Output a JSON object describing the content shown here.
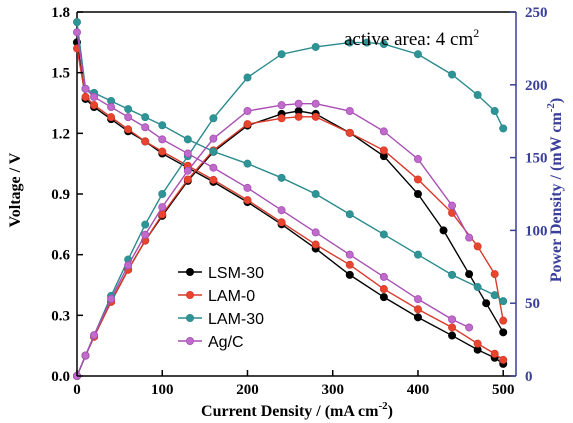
{
  "chart_data": {
    "type": "line",
    "x_axis": {
      "label": "Current Density / (mA cm",
      "label_sup": "-2",
      "label_end": ")",
      "range": [
        0,
        515
      ],
      "ticks": [
        0,
        100,
        200,
        300,
        400,
        500
      ]
    },
    "y_left": {
      "label": "Voltage / V",
      "range": [
        0,
        1.8
      ],
      "ticks": [
        "0.0",
        "0.3",
        "0.6",
        "0.9",
        "1.2",
        "1.5",
        "1.8"
      ]
    },
    "y_right": {
      "label": "Power Density / (mW cm",
      "label_sup": "-2",
      "label_end": ")",
      "range": [
        0,
        250
      ],
      "ticks": [
        0,
        50,
        100,
        150,
        200,
        250
      ],
      "color": "#3a3f9a"
    },
    "annotation": {
      "text": "active area: 4 cm",
      "sup": "2"
    },
    "legend": {
      "position": "bottom-left"
    },
    "series": [
      {
        "name": "LSM-30",
        "color": "#000000",
        "fill": "#000000",
        "voltage": {
          "x": [
            0,
            10,
            20,
            40,
            60,
            80,
            100,
            130,
            160,
            200,
            240,
            280,
            320,
            360,
            400,
            440,
            470,
            490,
            500
          ],
          "y": [
            1.65,
            1.37,
            1.33,
            1.27,
            1.21,
            1.16,
            1.1,
            1.03,
            0.96,
            0.86,
            0.75,
            0.63,
            0.5,
            0.39,
            0.29,
            0.2,
            0.13,
            0.09,
            0.06
          ]
        },
        "power": {
          "x": [
            0,
            10,
            20,
            40,
            60,
            80,
            100,
            130,
            160,
            200,
            240,
            260,
            280,
            320,
            360,
            400,
            430,
            460,
            480,
            500
          ],
          "y": [
            0,
            14,
            27,
            51,
            73,
            93,
            110,
            134,
            154,
            172,
            180,
            182,
            180,
            167,
            151,
            125,
            100,
            70,
            50,
            30
          ]
        }
      },
      {
        "name": "LAM-0",
        "color": "#d93a2b",
        "fill": "#e8452e",
        "voltage": {
          "x": [
            0,
            10,
            20,
            40,
            60,
            80,
            100,
            130,
            160,
            200,
            240,
            280,
            320,
            360,
            400,
            440,
            470,
            490,
            500
          ],
          "y": [
            1.62,
            1.38,
            1.34,
            1.28,
            1.22,
            1.16,
            1.11,
            1.04,
            0.97,
            0.87,
            0.76,
            0.65,
            0.55,
            0.43,
            0.33,
            0.24,
            0.16,
            0.11,
            0.08
          ]
        },
        "power": {
          "x": [
            0,
            10,
            20,
            40,
            60,
            80,
            100,
            130,
            160,
            200,
            240,
            260,
            280,
            320,
            360,
            400,
            440,
            470,
            490,
            500
          ],
          "y": [
            0,
            14,
            27,
            51,
            73,
            93,
            111,
            135,
            155,
            173,
            177,
            178,
            178,
            167,
            155,
            135,
            112,
            89,
            70,
            38
          ]
        }
      },
      {
        "name": "LAM-30",
        "color": "#2a8a8c",
        "fill": "#2f9496",
        "voltage": {
          "x": [
            0,
            10,
            20,
            40,
            60,
            80,
            100,
            130,
            160,
            200,
            240,
            280,
            320,
            360,
            400,
            440,
            470,
            490,
            500
          ],
          "y": [
            1.75,
            1.42,
            1.4,
            1.36,
            1.32,
            1.28,
            1.24,
            1.17,
            1.11,
            1.05,
            0.98,
            0.9,
            0.8,
            0.7,
            0.6,
            0.5,
            0.44,
            0.4,
            0.37
          ]
        },
        "power": {
          "x": [
            0,
            10,
            20,
            40,
            60,
            80,
            100,
            130,
            160,
            200,
            240,
            280,
            320,
            340,
            360,
            400,
            440,
            470,
            490,
            500
          ],
          "y": [
            0,
            14,
            28,
            55,
            80,
            104,
            125,
            151,
            177,
            205,
            221,
            226,
            229,
            229,
            228,
            221,
            207,
            193,
            182,
            170
          ]
        }
      },
      {
        "name": "Ag/C",
        "color": "#a84fb4",
        "fill": "#c06bcc",
        "voltage": {
          "x": [
            0,
            10,
            20,
            40,
            60,
            80,
            100,
            130,
            160,
            200,
            240,
            280,
            320,
            360,
            400,
            440,
            460
          ],
          "y": [
            1.7,
            1.42,
            1.38,
            1.33,
            1.28,
            1.23,
            1.17,
            1.1,
            1.03,
            0.93,
            0.82,
            0.71,
            0.6,
            0.49,
            0.38,
            0.28,
            0.24
          ]
        },
        "power": {
          "x": [
            0,
            10,
            20,
            40,
            60,
            80,
            100,
            130,
            160,
            200,
            240,
            260,
            280,
            320,
            360,
            400,
            440,
            460
          ],
          "y": [
            0,
            14,
            28,
            53,
            76,
            97,
            116,
            141,
            163,
            182,
            186,
            187,
            187,
            182,
            168,
            149,
            117,
            95
          ]
        }
      }
    ]
  }
}
